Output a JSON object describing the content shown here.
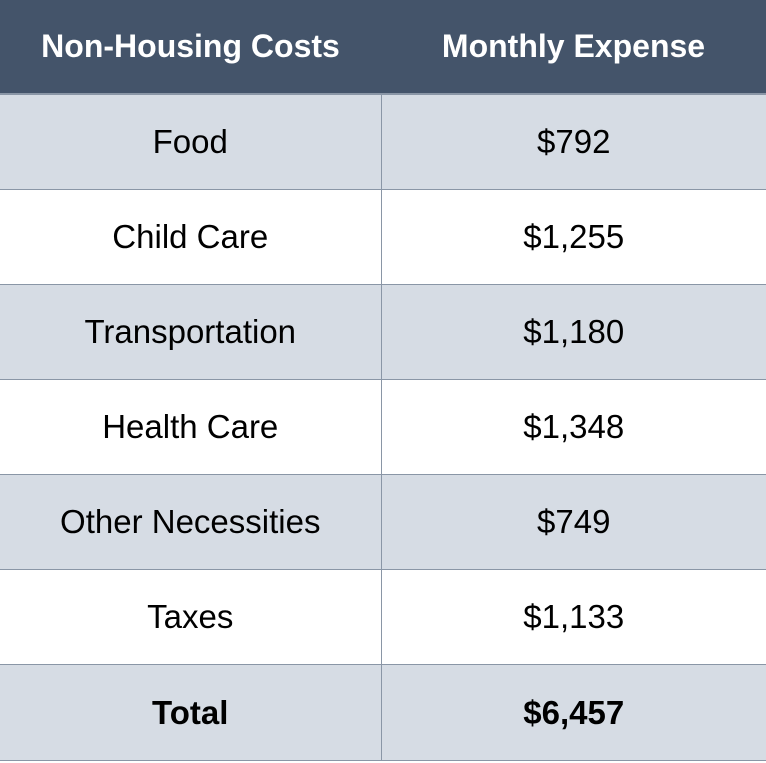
{
  "table": {
    "headers": [
      "Non-Housing Costs",
      "Monthly Expense"
    ],
    "rows": [
      {
        "category": "Food",
        "expense": "$792"
      },
      {
        "category": "Child Care",
        "expense": "$1,255"
      },
      {
        "category": "Transportation",
        "expense": "$1,180"
      },
      {
        "category": "Health Care",
        "expense": "$1,348"
      },
      {
        "category": "Other Necessities",
        "expense": "$749"
      },
      {
        "category": "Taxes",
        "expense": "$1,133"
      }
    ],
    "total": {
      "label": "Total",
      "expense": "$6,457"
    }
  },
  "colors": {
    "header": "#44546a",
    "shade": "#d6dce4",
    "border": "#8a96a6"
  }
}
